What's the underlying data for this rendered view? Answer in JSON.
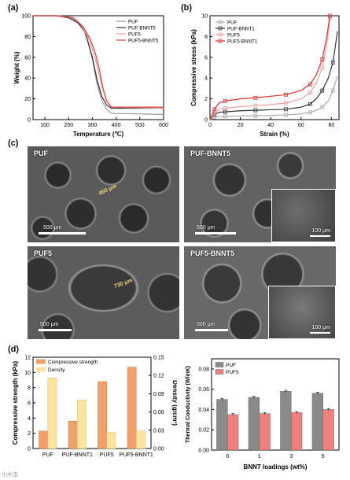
{
  "panels": {
    "a": "(a)",
    "b": "(b)",
    "c": "(c)",
    "d": "(d)"
  },
  "chart_data": [
    {
      "id": "a",
      "type": "line",
      "xlabel": "Temperature (℃)",
      "ylabel": "Weight (%)",
      "xlim": [
        50,
        600
      ],
      "ylim": [
        0,
        100
      ],
      "xticks": [
        "100",
        "200",
        "300",
        "400",
        "500",
        "600"
      ],
      "yticks": [
        "0",
        "20",
        "40",
        "60",
        "80",
        "100"
      ],
      "legend_position": "top-right",
      "series": [
        {
          "name": "PUF",
          "color": "#9a9a9a",
          "x": [
            50,
            150,
            200,
            240,
            260,
            280,
            300,
            320,
            340,
            360,
            380,
            600
          ],
          "y": [
            100,
            100,
            99,
            94,
            88,
            76,
            58,
            34,
            18,
            10,
            6,
            5
          ]
        },
        {
          "name": "PUF-BNNT5",
          "color": "#333333",
          "x": [
            50,
            150,
            200,
            240,
            270,
            300,
            320,
            340,
            360,
            380,
            600
          ],
          "y": [
            100,
            100,
            98,
            93,
            84,
            60,
            38,
            22,
            14,
            11,
            11
          ]
        },
        {
          "name": "PUF5",
          "color": "#e8a0a0",
          "x": [
            50,
            150,
            220,
            250,
            280,
            300,
            320,
            340,
            360,
            380,
            600
          ],
          "y": [
            100,
            100,
            98,
            92,
            80,
            68,
            52,
            32,
            18,
            12,
            11
          ]
        },
        {
          "name": "PUF5-BNNT5",
          "color": "#d94040",
          "x": [
            50,
            150,
            220,
            260,
            290,
            310,
            330,
            345,
            360,
            380,
            600
          ],
          "y": [
            100,
            100,
            98,
            90,
            78,
            66,
            48,
            30,
            18,
            12,
            12
          ]
        }
      ]
    },
    {
      "id": "b",
      "type": "line",
      "xlabel": "Strain (%)",
      "ylabel": "Compressive stress (kPa)",
      "xlim": [
        0,
        85
      ],
      "ylim": [
        0,
        10
      ],
      "xticks": [
        "0",
        "20",
        "40",
        "60",
        "80"
      ],
      "yticks": [
        "0",
        "2",
        "4",
        "6",
        "8",
        "10"
      ],
      "legend_position": "top-left",
      "series": [
        {
          "name": "PUF",
          "color": "#aaaaaa",
          "x": [
            0,
            3,
            6,
            10,
            20,
            30,
            40,
            50,
            60,
            66,
            70,
            74,
            78,
            81,
            84
          ],
          "y": [
            0,
            0.22,
            0.3,
            0.32,
            0.35,
            0.37,
            0.4,
            0.45,
            0.55,
            0.7,
            0.9,
            1.2,
            1.8,
            2.8,
            4.2
          ]
        },
        {
          "name": "PUF-BNNT1",
          "color": "#333333",
          "x": [
            0,
            3,
            6,
            10,
            20,
            30,
            40,
            50,
            60,
            66,
            70,
            74,
            78,
            81,
            84
          ],
          "y": [
            0,
            0.5,
            0.7,
            0.75,
            0.85,
            0.9,
            0.95,
            1.0,
            1.2,
            1.5,
            2.0,
            2.8,
            4.0,
            5.5,
            8.5
          ]
        },
        {
          "name": "PUF5",
          "color": "#f0a0a0",
          "x": [
            0,
            3,
            6,
            10,
            20,
            30,
            40,
            50,
            60,
            66,
            70,
            74,
            77,
            79
          ],
          "y": [
            0,
            0.6,
            1.0,
            1.1,
            1.25,
            1.35,
            1.45,
            1.6,
            2.0,
            2.6,
            3.5,
            5.0,
            7.2,
            9.8
          ]
        },
        {
          "name": "PUF5-BNNT1",
          "color": "#d93030",
          "x": [
            0,
            3,
            6,
            10,
            20,
            30,
            40,
            50,
            60,
            66,
            70,
            74,
            77,
            79
          ],
          "y": [
            0,
            1.0,
            1.6,
            1.8,
            2.0,
            2.1,
            2.25,
            2.4,
            2.8,
            3.4,
            4.3,
            5.8,
            8.0,
            10.0
          ]
        }
      ]
    },
    {
      "id": "d1",
      "type": "bar",
      "categories": [
        "PUF",
        "PUF-BNNT1",
        "PUF5",
        "PUF5-BNNT1"
      ],
      "ylabel": "Compressive strength (kPa)",
      "y2label": "Density (g/cm³)",
      "ylim": [
        0,
        12
      ],
      "y2lim": [
        0,
        0.15
      ],
      "yticks": [
        "0",
        "2",
        "4",
        "6",
        "8",
        "10",
        "12"
      ],
      "y2ticks": [
        "0.00",
        "0.03",
        "0.06",
        "0.09",
        "0.12",
        "0.15"
      ],
      "legend_position": "top-left",
      "series": [
        {
          "name": "Compressive strength",
          "color": "#f0a06a",
          "axis": "left",
          "values": [
            2.3,
            3.6,
            8.8,
            10.7
          ]
        },
        {
          "name": "Density",
          "color": "#fbe3a0",
          "axis": "right",
          "values": [
            0.116,
            0.08,
            0.027,
            0.029
          ]
        }
      ]
    },
    {
      "id": "d2",
      "type": "bar",
      "categories": [
        "0",
        "1",
        "3",
        "5"
      ],
      "xlabel": "BNNT loadings (wt%)",
      "ylabel": "Thermal Conductivity (W/mK)",
      "ylim": [
        0,
        0.09
      ],
      "yticks": [
        "0.00",
        "0.02",
        "0.04",
        "0.06",
        "0.08"
      ],
      "legend_position": "top-left",
      "series": [
        {
          "name": "PUF",
          "color": "#8a8a8a",
          "values": [
            0.05,
            0.052,
            0.058,
            0.056
          ],
          "errors": [
            0.001,
            0.001,
            0.001,
            0.001
          ]
        },
        {
          "name": "PUF5",
          "color": "#f08080",
          "values": [
            0.035,
            0.036,
            0.037,
            0.04
          ],
          "errors": [
            0.001,
            0.001,
            0.001,
            0.001
          ]
        }
      ]
    }
  ],
  "sem": [
    {
      "label": "PUF",
      "scale": "500 μm",
      "pore": "460 μm"
    },
    {
      "label": "PUF-BNNT5",
      "scale": "500 μm",
      "inset_scale": "100 μm"
    },
    {
      "label": "PUF5",
      "scale": "500 μm",
      "pore": "730 μm"
    },
    {
      "label": "PUF5-BNNT5",
      "scale": "500 μm",
      "inset_scale": "100 μm"
    }
  ],
  "watermark": "小木虫"
}
